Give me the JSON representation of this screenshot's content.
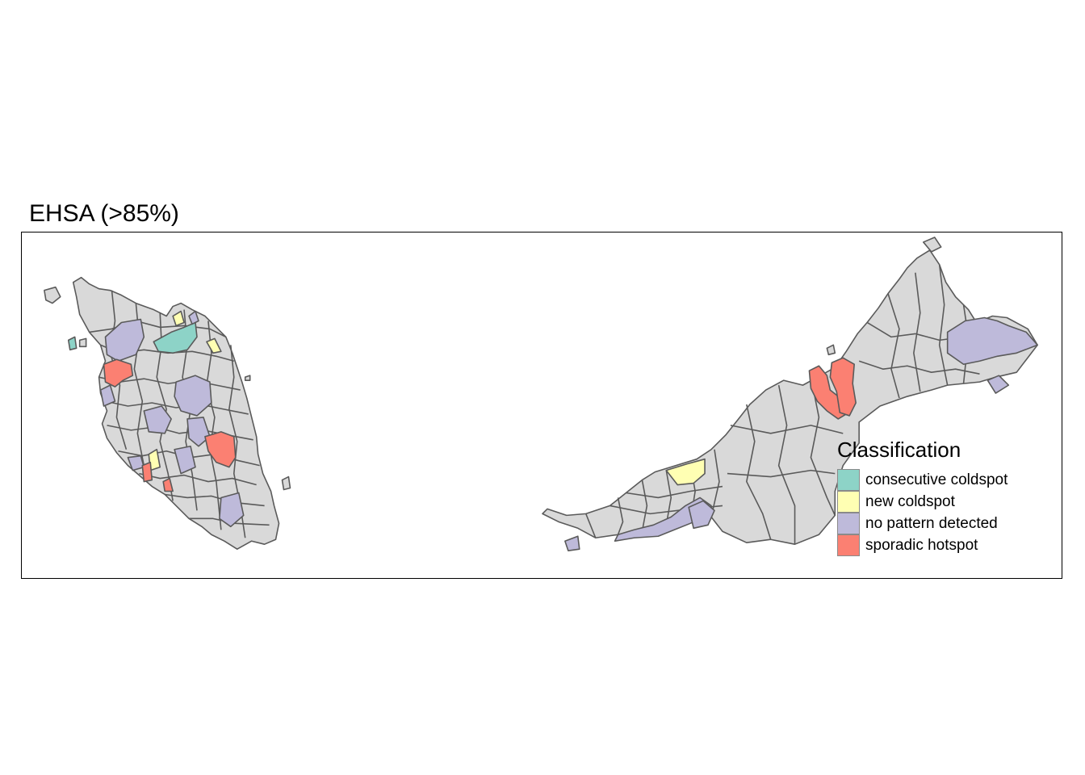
{
  "title": "EHSA (>85%)",
  "legend": {
    "title": "Classification",
    "items": [
      {
        "label": "consecutive coldspot",
        "color": "#8dd3c7"
      },
      {
        "label": "new coldspot",
        "color": "#ffffb3"
      },
      {
        "label": "no pattern detected",
        "color": "#bebada"
      },
      {
        "label": "sporadic hotspot",
        "color": "#fb8072"
      }
    ]
  },
  "colors": {
    "default_fill": "#d9d9d9",
    "border": "#5a5a5a"
  }
}
